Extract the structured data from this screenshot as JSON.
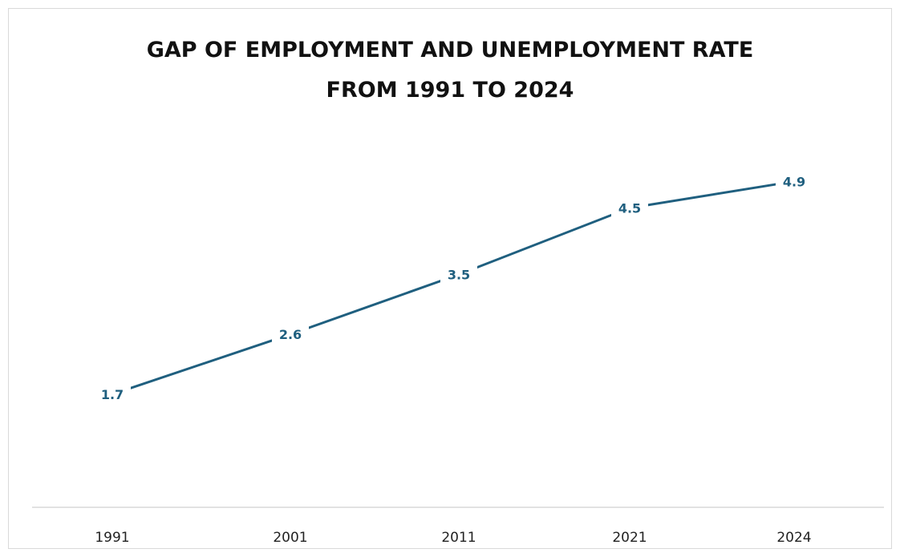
{
  "chart_data": {
    "type": "line",
    "title": [
      "GAP OF EMPLOYMENT AND UNEMPLOYMENT RATE",
      "FROM 1991 TO 2024"
    ],
    "categories": [
      "1991",
      "2001",
      "2011",
      "2021",
      "2024"
    ],
    "series": [
      {
        "values": [
          1.7,
          2.6,
          3.5,
          4.5,
          4.9
        ]
      }
    ],
    "data_labels": [
      "1.7",
      "2.6",
      "3.5",
      "4.5",
      "4.9"
    ],
    "ylim": [
      0,
      6
    ],
    "grid": false,
    "legend": "none",
    "line_color": "#1f5f7f"
  }
}
